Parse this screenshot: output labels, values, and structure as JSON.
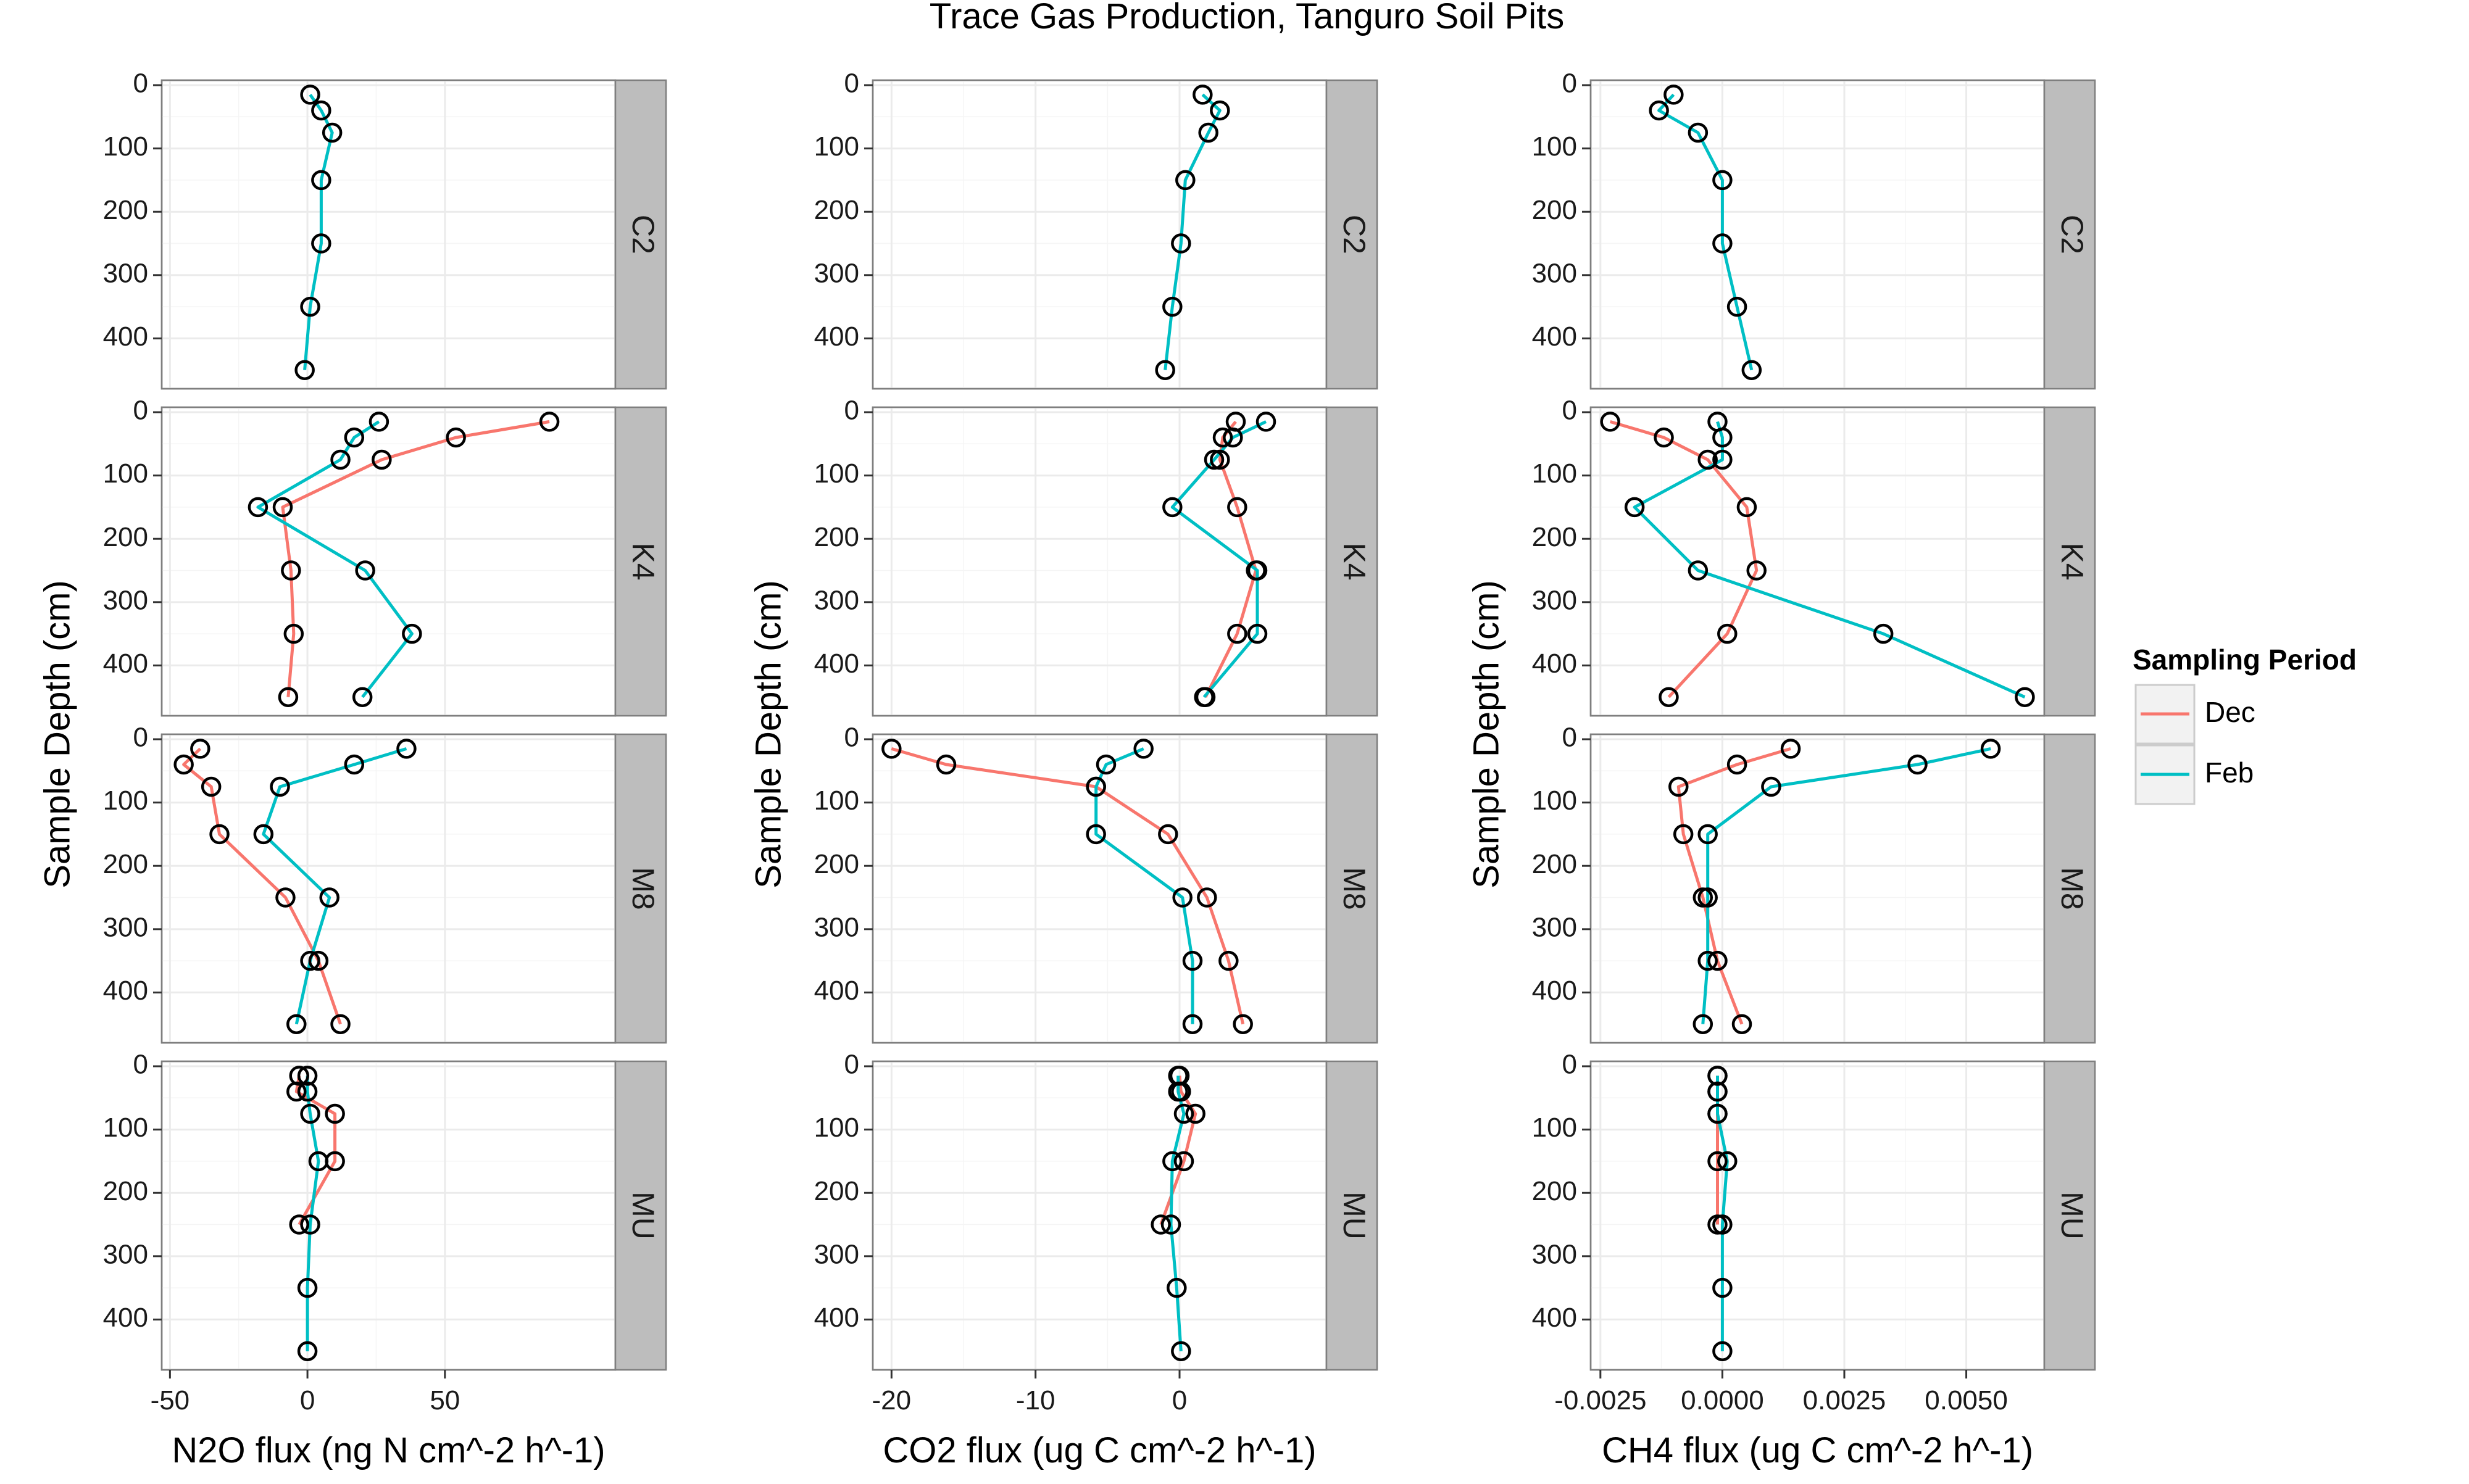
{
  "chart_data": {
    "type": "line",
    "title": "Trace Gas Production, Tanguro Soil Pits",
    "ylabel": "Sample Depth (cm)",
    "ylim": [
      0,
      460
    ],
    "y_reversed": true,
    "yticks": [
      0,
      100,
      200,
      300,
      400
    ],
    "grid": true,
    "legend": {
      "title": "Sampling Period",
      "placement": "right",
      "entries": [
        {
          "name": "Dec",
          "color": "#F8766D"
        },
        {
          "name": "Feb",
          "color": "#00BFC4"
        }
      ]
    },
    "series_colors": {
      "Dec": "#F8766D",
      "Feb": "#00BFC4"
    },
    "rows": [
      "C2",
      "K4",
      "M8",
      "MU"
    ],
    "columns": [
      {
        "xlabel": "N2O flux (ng N cm^-2 h^-1)",
        "xlim": [
          -53,
          112
        ],
        "xticks": [
          -50,
          0,
          50
        ],
        "xtick_labels": [
          "-50",
          "0",
          "50"
        ],
        "panels": {
          "C2": {
            "Feb": {
              "x": [
                1,
                5,
                9,
                5,
                5,
                1,
                -1
              ],
              "y": [
                15,
                40,
                75,
                150,
                250,
                350,
                450
              ]
            }
          },
          "K4": {
            "Dec": {
              "x": [
                88,
                54,
                27,
                -9,
                -6,
                -5,
                -7
              ],
              "y": [
                15,
                40,
                75,
                150,
                250,
                350,
                450
              ]
            },
            "Feb": {
              "x": [
                26,
                17,
                12,
                -18,
                21,
                38,
                20
              ],
              "y": [
                15,
                40,
                75,
                150,
                250,
                350,
                450
              ]
            }
          },
          "M8": {
            "Dec": {
              "x": [
                -39,
                -45,
                -35,
                -32,
                -8,
                4,
                12
              ],
              "y": [
                15,
                40,
                75,
                150,
                250,
                350,
                450
              ]
            },
            "Feb": {
              "x": [
                36,
                17,
                -10,
                -16,
                8,
                1,
                -4
              ],
              "y": [
                15,
                40,
                75,
                150,
                250,
                350,
                450
              ]
            }
          },
          "MU": {
            "Dec": {
              "x": [
                -3,
                -4,
                10,
                10,
                -3
              ],
              "y": [
                15,
                40,
                75,
                150,
                250
              ]
            },
            "Feb": {
              "x": [
                0,
                0,
                1,
                4,
                1,
                0,
                0
              ],
              "y": [
                15,
                40,
                75,
                150,
                250,
                350,
                450
              ]
            }
          }
        }
      },
      {
        "xlabel": "CO2 flux (ug C cm^-2 h^-1)",
        "xlim": [
          -21.3,
          10.2
        ],
        "xticks": [
          -20,
          -10,
          0
        ],
        "xtick_labels": [
          "-20",
          "-10",
          "0"
        ],
        "panels": {
          "C2": {
            "Feb": {
              "x": [
                1.6,
                2.8,
                2.0,
                0.4,
                0.1,
                -0.5,
                -1.0
              ],
              "y": [
                15,
                40,
                75,
                150,
                250,
                350,
                450
              ]
            }
          },
          "K4": {
            "Dec": {
              "x": [
                3.9,
                3.0,
                2.8,
                4.0,
                5.3,
                4.0,
                1.8
              ],
              "y": [
                15,
                40,
                75,
                150,
                250,
                350,
                450
              ]
            },
            "Feb": {
              "x": [
                6.0,
                3.7,
                2.4,
                -0.5,
                5.4,
                5.4,
                1.7
              ],
              "y": [
                15,
                40,
                75,
                150,
                250,
                350,
                450
              ]
            }
          },
          "M8": {
            "Dec": {
              "x": [
                -20.0,
                -16.2,
                -5.8,
                -0.8,
                1.9,
                3.4,
                4.4
              ],
              "y": [
                15,
                40,
                75,
                150,
                250,
                350,
                450
              ]
            },
            "Feb": {
              "x": [
                -2.5,
                -5.1,
                -5.8,
                -5.8,
                0.2,
                0.9,
                0.9
              ],
              "y": [
                15,
                40,
                75,
                150,
                250,
                350,
                450
              ]
            }
          },
          "MU": {
            "Dec": {
              "x": [
                0.0,
                0.1,
                1.1,
                0.3,
                -1.3
              ],
              "y": [
                15,
                40,
                75,
                150,
                250
              ]
            },
            "Feb": {
              "x": [
                -0.1,
                -0.1,
                0.3,
                -0.5,
                -0.6,
                -0.2,
                0.1
              ],
              "y": [
                15,
                40,
                75,
                150,
                250,
                350,
                450
              ]
            }
          }
        }
      },
      {
        "xlabel": "CH4 flux (ug C cm^-2 h^-1)",
        "xlim": [
          -0.0027,
          0.0066
        ],
        "xticks": [
          -0.0025,
          0.0,
          0.0025,
          0.005
        ],
        "xtick_labels": [
          "-0.0025",
          "0.0000",
          "0.0025",
          "0.0050"
        ],
        "panels": {
          "C2": {
            "Feb": {
              "x": [
                -0.001,
                -0.0013,
                -0.0005,
                0.0,
                0.0,
                0.0003,
                0.0006
              ],
              "y": [
                15,
                40,
                75,
                150,
                250,
                350,
                450
              ]
            }
          },
          "K4": {
            "Dec": {
              "x": [
                -0.0023,
                -0.0012,
                -0.0003,
                0.0005,
                0.0007,
                0.0001,
                -0.0011
              ],
              "y": [
                15,
                40,
                75,
                150,
                250,
                350,
                450
              ]
            },
            "Feb": {
              "x": [
                -0.0001,
                0.0,
                0.0,
                -0.0018,
                -0.0005,
                0.0033,
                0.0062
              ],
              "y": [
                15,
                40,
                75,
                150,
                250,
                350,
                450
              ]
            }
          },
          "M8": {
            "Dec": {
              "x": [
                0.0014,
                0.0003,
                -0.0009,
                -0.0008,
                -0.0004,
                -0.0001,
                0.0004
              ],
              "y": [
                15,
                40,
                75,
                150,
                250,
                350,
                450
              ]
            },
            "Feb": {
              "x": [
                0.0055,
                0.004,
                0.001,
                -0.0003,
                -0.0003,
                -0.0003,
                -0.0004
              ],
              "y": [
                15,
                40,
                75,
                150,
                250,
                350,
                450
              ]
            }
          },
          "MU": {
            "Dec": {
              "x": [
                -0.0001,
                -0.0001,
                -0.0001,
                -0.0001,
                -0.0001
              ],
              "y": [
                15,
                40,
                75,
                150,
                250
              ]
            },
            "Feb": {
              "x": [
                -0.0001,
                -0.0001,
                -0.0001,
                0.0001,
                0.0,
                0.0,
                0.0
              ],
              "y": [
                15,
                40,
                75,
                150,
                250,
                350,
                450
              ]
            }
          }
        }
      }
    ]
  }
}
